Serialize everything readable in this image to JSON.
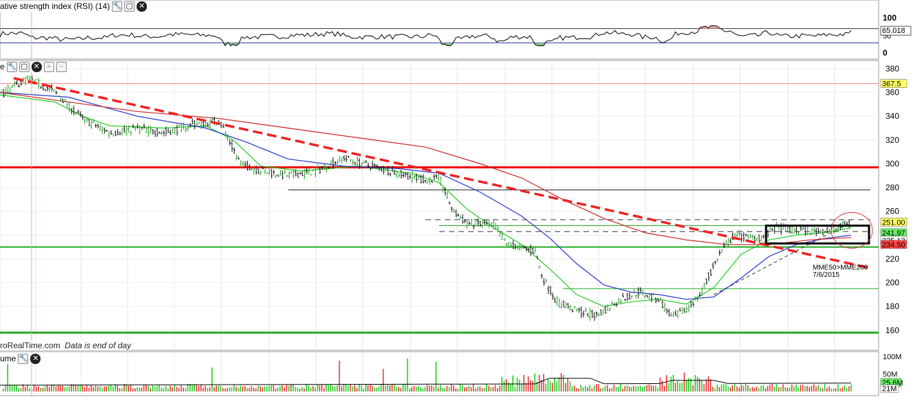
{
  "panels": {
    "rsi": {
      "title": "ative strength index (RSI) (14)",
      "last_value": "65.018",
      "ticks": [
        "100",
        "50",
        "0"
      ]
    },
    "price": {
      "title": "e",
      "ticks": [
        "380",
        "360",
        "340",
        "320",
        "300",
        "280",
        "260",
        "240",
        "220",
        "200",
        "180",
        "160"
      ],
      "price_labels": [
        "367.5",
        "251.00",
        "241.97",
        "235.12",
        "234.50"
      ],
      "annotation_line1": "MME50>MME200",
      "annotation_line2": "7/6/2015"
    },
    "volume": {
      "title": "ume",
      "ticks": [
        "100M",
        "50M",
        "21M"
      ],
      "value_labels": [
        "25.6M",
        "21M"
      ]
    }
  },
  "source_note": {
    "site": "roRealTime.com",
    "note": "Data is end of day"
  },
  "icons": [
    "wrench-icon",
    "maximize-icon",
    "close-icon",
    "zoom-in-icon",
    "zoom-out-icon"
  ],
  "colors": {
    "price_up": "#2aa02a",
    "price_down": "#111111",
    "mme20": "#22cc22",
    "mme50": "#2233cc",
    "mme200": "#cc2222",
    "resistance": "#ee0000",
    "support": "#22aa22",
    "trendline": "#ee2222",
    "rsi_line": "#000000",
    "overbought_fill": "#e6a0a0",
    "oversold_fill": "#8ec48e",
    "volume_up": "#22cc22",
    "volume_down": "#ee3333"
  },
  "chart_data": [
    {
      "type": "line",
      "title": "RSI (14)",
      "ylim": [
        0,
        100
      ],
      "levels": [
        70,
        30
      ],
      "series": [
        {
          "name": "RSI (14)",
          "last": 65.018
        }
      ]
    },
    {
      "type": "candlestick",
      "ylim": [
        150,
        385
      ],
      "horizontal_levels": [
        367.5,
        297,
        278,
        230,
        158,
        195
      ],
      "price_labels": [
        367.5,
        251.0,
        241.97,
        235.12,
        234.5
      ],
      "series": [
        {
          "points": [
            [
              0,
              358
            ],
            [
              40,
              372
            ],
            [
              80,
              360
            ],
            [
              120,
              338
            ],
            [
              160,
              326
            ],
            [
              200,
              330
            ],
            [
              240,
              326
            ],
            [
              280,
              333
            ],
            [
              320,
              336
            ],
            [
              350,
              300
            ],
            [
              380,
              294
            ],
            [
              420,
              290
            ],
            [
              460,
              294
            ],
            [
              500,
              305
            ],
            [
              540,
              298
            ],
            [
              580,
              292
            ],
            [
              620,
              286
            ],
            [
              640,
              288
            ],
            [
              660,
              260
            ],
            [
              680,
              250
            ],
            [
              720,
              248
            ],
            [
              740,
              232
            ],
            [
              780,
              226
            ],
            [
              790,
              205
            ],
            [
              810,
              185
            ],
            [
              840,
              176
            ],
            [
              870,
              172
            ],
            [
              900,
              185
            ],
            [
              930,
              192
            ],
            [
              960,
              186
            ],
            [
              980,
              170
            ],
            [
              1000,
              178
            ],
            [
              1020,
              190
            ],
            [
              1035,
              208
            ],
            [
              1050,
              226
            ],
            [
              1070,
              240
            ],
            [
              1090,
              238
            ],
            [
              1110,
              238
            ],
            [
              1130,
              246
            ],
            [
              1160,
              244
            ],
            [
              1200,
              243
            ],
            [
              1220,
              246
            ],
            [
              1240,
              250
            ]
          ]
        },
        {
          "name": "MME20",
          "points": [
            [
              0,
              358
            ],
            [
              80,
              352
            ],
            [
              120,
              340
            ],
            [
              160,
              332
            ],
            [
              240,
              330
            ],
            [
              300,
              332
            ],
            [
              340,
              320
            ],
            [
              380,
              298
            ],
            [
              440,
              294
            ],
            [
              520,
              298
            ],
            [
              600,
              292
            ],
            [
              640,
              284
            ],
            [
              680,
              262
            ],
            [
              720,
              246
            ],
            [
              760,
              232
            ],
            [
              800,
              212
            ],
            [
              840,
              190
            ],
            [
              880,
              180
            ],
            [
              920,
              184
            ],
            [
              960,
              186
            ],
            [
              1000,
              182
            ],
            [
              1040,
              196
            ],
            [
              1080,
              224
            ],
            [
              1120,
              236
            ],
            [
              1160,
              240
            ],
            [
              1200,
              242
            ],
            [
              1240,
              246
            ]
          ]
        },
        {
          "name": "MME50",
          "points": [
            [
              0,
              360
            ],
            [
              100,
              356
            ],
            [
              200,
              340
            ],
            [
              300,
              330
            ],
            [
              360,
              318
            ],
            [
              420,
              304
            ],
            [
              500,
              298
            ],
            [
              580,
              296
            ],
            [
              640,
              292
            ],
            [
              700,
              276
            ],
            [
              760,
              256
            ],
            [
              800,
              238
            ],
            [
              840,
              216
            ],
            [
              880,
              198
            ],
            [
              920,
              192
            ],
            [
              960,
              190
            ],
            [
              1000,
              186
            ],
            [
              1040,
              188
            ],
            [
              1080,
              204
            ],
            [
              1120,
              222
            ],
            [
              1160,
              232
            ],
            [
              1200,
              237
            ],
            [
              1240,
              240
            ]
          ]
        },
        {
          "name": "MME200",
          "points": [
            [
              0,
              360
            ],
            [
              200,
              344
            ],
            [
              320,
              338
            ],
            [
              420,
              330
            ],
            [
              520,
              322
            ],
            [
              620,
              314
            ],
            [
              700,
              300
            ],
            [
              760,
              288
            ],
            [
              820,
              270
            ],
            [
              880,
              254
            ],
            [
              940,
              242
            ],
            [
              1000,
              236
            ],
            [
              1060,
              232
            ],
            [
              1120,
              232
            ],
            [
              1180,
              236
            ],
            [
              1240,
              238
            ]
          ]
        }
      ],
      "trendlines": [
        {
          "from": [
            20,
            372
          ],
          "to": [
            1270,
            212
          ]
        }
      ],
      "annotations": [
        "MME50>MME200",
        "7/6/2015"
      ]
    },
    {
      "type": "bar",
      "title": "Volume",
      "ylim": [
        0,
        110
      ],
      "values_summary": "volume bars in millions; spikes near 100M mid/late period",
      "last": 25.6,
      "average": 21
    }
  ]
}
